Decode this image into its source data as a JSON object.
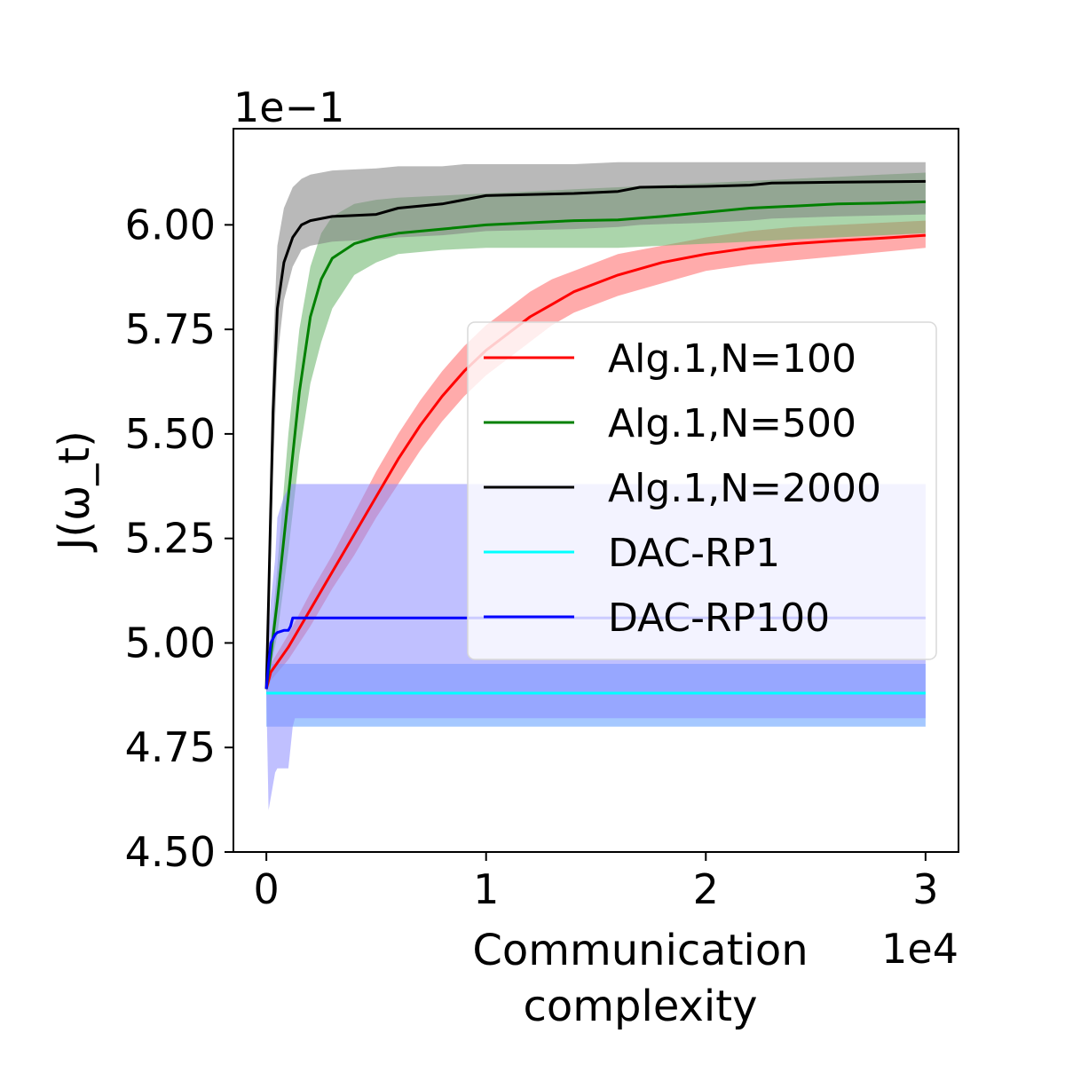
{
  "chart_data": {
    "type": "line",
    "title": "",
    "xlabel_lines": [
      "Communication",
      "complexity"
    ],
    "ylabel": "J(ω_t)",
    "x_offset_label": "1e4",
    "y_offset_label": "1e−1",
    "xlim": [
      -0.15,
      3.15
    ],
    "ylim": [
      4.5,
      6.23
    ],
    "x_ticks": [
      0,
      1,
      2,
      3
    ],
    "x_tick_labels": [
      "0",
      "1",
      "2",
      "3"
    ],
    "y_ticks": [
      4.5,
      4.75,
      5.0,
      5.25,
      5.5,
      5.75,
      6.0
    ],
    "y_tick_labels": [
      "4.50",
      "4.75",
      "5.00",
      "5.25",
      "5.50",
      "5.75",
      "6.00"
    ],
    "grid": false,
    "legend_position": "center-right",
    "series": [
      {
        "name": "Alg.1,N=100",
        "color": "#ff0000",
        "band_color": "#ff6666",
        "x": [
          0,
          0.02,
          0.1,
          0.2,
          0.3,
          0.4,
          0.5,
          0.6,
          0.7,
          0.8,
          0.9,
          1.0,
          1.1,
          1.2,
          1.3,
          1.4,
          1.6,
          1.8,
          2.0,
          2.2,
          2.4,
          2.6,
          2.8,
          3.0
        ],
        "y": [
          4.89,
          4.93,
          4.99,
          5.08,
          5.17,
          5.26,
          5.35,
          5.44,
          5.52,
          5.59,
          5.65,
          5.7,
          5.74,
          5.78,
          5.81,
          5.84,
          5.88,
          5.91,
          5.93,
          5.945,
          5.955,
          5.962,
          5.968,
          5.975
        ],
        "lower": [
          4.88,
          4.91,
          4.96,
          5.04,
          5.13,
          5.21,
          5.3,
          5.38,
          5.46,
          5.53,
          5.59,
          5.64,
          5.68,
          5.72,
          5.76,
          5.79,
          5.83,
          5.86,
          5.89,
          5.905,
          5.915,
          5.925,
          5.935,
          5.945
        ],
        "upper": [
          4.9,
          4.95,
          5.02,
          5.12,
          5.21,
          5.31,
          5.41,
          5.5,
          5.58,
          5.65,
          5.71,
          5.76,
          5.8,
          5.84,
          5.87,
          5.89,
          5.93,
          5.95,
          5.97,
          5.985,
          5.995,
          6.0,
          6.005,
          6.01
        ]
      },
      {
        "name": "Alg.1,N=500",
        "color": "#008000",
        "band_color": "#66b266",
        "x": [
          0,
          0.02,
          0.05,
          0.1,
          0.15,
          0.2,
          0.25,
          0.3,
          0.4,
          0.5,
          0.6,
          0.8,
          1.0,
          1.2,
          1.4,
          1.6,
          1.8,
          2.0,
          2.2,
          2.4,
          2.6,
          2.8,
          3.0
        ],
        "y": [
          4.89,
          4.97,
          5.1,
          5.35,
          5.6,
          5.78,
          5.87,
          5.92,
          5.955,
          5.97,
          5.98,
          5.99,
          6.0,
          6.005,
          6.01,
          6.012,
          6.02,
          6.03,
          6.04,
          6.045,
          6.05,
          6.052,
          6.055
        ],
        "lower": [
          4.88,
          4.94,
          5.02,
          5.22,
          5.45,
          5.62,
          5.72,
          5.8,
          5.88,
          5.91,
          5.93,
          5.94,
          5.945,
          5.945,
          5.945,
          5.945,
          5.95,
          5.955,
          5.96,
          5.965,
          5.97,
          5.975,
          5.98
        ],
        "upper": [
          4.9,
          5.0,
          5.18,
          5.5,
          5.75,
          5.9,
          5.98,
          6.02,
          6.05,
          6.06,
          6.065,
          6.07,
          6.075,
          6.08,
          6.085,
          6.09,
          6.095,
          6.1,
          6.105,
          6.11,
          6.115,
          6.12,
          6.125
        ]
      },
      {
        "name": "Alg.1,N=2000",
        "color": "#000000",
        "band_color": "#808080",
        "x": [
          0,
          0.01,
          0.03,
          0.05,
          0.08,
          0.12,
          0.16,
          0.2,
          0.3,
          0.5,
          0.6,
          0.8,
          0.9,
          1.0,
          1.4,
          1.6,
          1.7,
          2.0,
          2.2,
          2.3,
          2.6,
          3.0
        ],
        "y": [
          4.89,
          5.1,
          5.55,
          5.8,
          5.91,
          5.97,
          6.0,
          6.01,
          6.02,
          6.025,
          6.04,
          6.05,
          6.06,
          6.07,
          6.075,
          6.08,
          6.09,
          6.092,
          6.095,
          6.1,
          6.102,
          6.104
        ],
        "lower": [
          4.88,
          5.02,
          5.4,
          5.68,
          5.82,
          5.9,
          5.94,
          5.95,
          5.96,
          5.965,
          5.97,
          5.975,
          5.98,
          5.985,
          5.99,
          5.995,
          6.0,
          6.005,
          6.01,
          6.015,
          6.02,
          6.025
        ],
        "upper": [
          4.9,
          5.18,
          5.7,
          5.95,
          6.04,
          6.09,
          6.11,
          6.12,
          6.13,
          6.135,
          6.14,
          6.14,
          6.145,
          6.145,
          6.145,
          6.15,
          6.15,
          6.15,
          6.15,
          6.15,
          6.15,
          6.15
        ]
      },
      {
        "name": "DAC-RP1",
        "color": "#00ffff",
        "band_color": "#5b9bff",
        "x": [
          0,
          0.01,
          0.1,
          1.0,
          2.0,
          3.0
        ],
        "y": [
          4.88,
          4.88,
          4.88,
          4.88,
          4.88,
          4.88
        ],
        "lower": [
          4.8,
          4.8,
          4.8,
          4.8,
          4.8,
          4.8
        ],
        "upper": [
          4.95,
          4.95,
          4.95,
          4.95,
          4.95,
          4.95
        ]
      },
      {
        "name": "DAC-RP100",
        "color": "#0000ff",
        "band_color": "#8c8cff",
        "x": [
          0,
          0.01,
          0.02,
          0.04,
          0.05,
          0.08,
          0.1,
          0.11,
          0.12,
          0.13,
          1.0,
          2.0,
          3.0
        ],
        "y": [
          4.89,
          4.95,
          5.0,
          5.02,
          5.025,
          5.03,
          5.03,
          5.04,
          5.06,
          5.06,
          5.06,
          5.06,
          5.06
        ],
        "lower": [
          4.88,
          4.6,
          4.63,
          4.69,
          4.7,
          4.7,
          4.7,
          4.75,
          4.8,
          4.82,
          4.82,
          4.82,
          4.82
        ],
        "upper": [
          4.9,
          5.02,
          5.1,
          5.2,
          5.3,
          5.35,
          5.37,
          5.38,
          5.38,
          5.38,
          5.38,
          5.38,
          5.38
        ]
      }
    ]
  }
}
